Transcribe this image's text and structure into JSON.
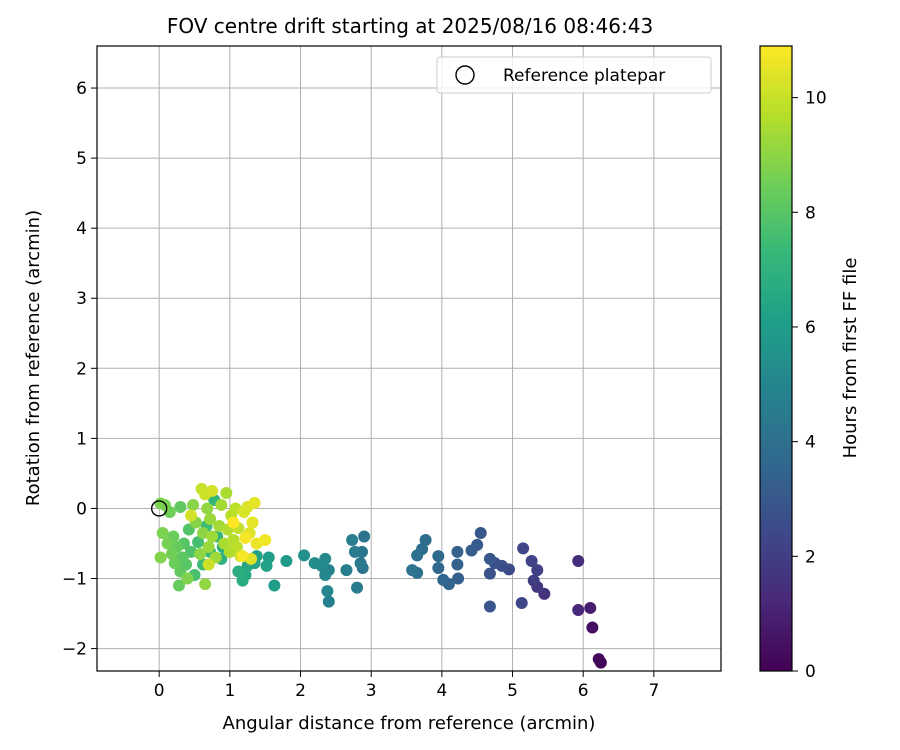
{
  "chart_data": {
    "type": "scatter",
    "title": "FOV centre drift starting at 2025/08/16 08:46:43",
    "xlabel": "Angular distance from reference (arcmin)",
    "ylabel": "Rotation from reference (arcmin)",
    "xlim": [
      -0.88,
      7.95
    ],
    "ylim": [
      -2.32,
      6.6
    ],
    "xticks": [
      "0",
      "1",
      "2",
      "3",
      "4",
      "5",
      "6",
      "7"
    ],
    "yticks": [
      "−2",
      "−1",
      "0",
      "1",
      "2",
      "3",
      "4",
      "5",
      "6"
    ],
    "grid": true,
    "legend": {
      "placement": "top-right",
      "label": "Reference platepar"
    },
    "reference_point": {
      "x": 0.0,
      "y": 0.0
    },
    "colorbar": {
      "label": "Hours from first FF file",
      "range": [
        0,
        10.9
      ],
      "ticks": [
        "0",
        "2",
        "4",
        "6",
        "8",
        "10"
      ],
      "colormap": "viridis"
    },
    "points": [
      {
        "x": 6.25,
        "y": -2.2,
        "t": 0.1
      },
      {
        "x": 6.22,
        "y": -2.15,
        "t": 0.2
      },
      {
        "x": 6.13,
        "y": -1.7,
        "t": 0.4
      },
      {
        "x": 6.1,
        "y": -1.42,
        "t": 0.9
      },
      {
        "x": 5.93,
        "y": -1.45,
        "t": 1.2
      },
      {
        "x": 5.93,
        "y": -0.75,
        "t": 1.4
      },
      {
        "x": 5.45,
        "y": -1.22,
        "t": 1.6
      },
      {
        "x": 5.35,
        "y": -1.12,
        "t": 1.8
      },
      {
        "x": 5.3,
        "y": -1.03,
        "t": 2.0
      },
      {
        "x": 5.35,
        "y": -0.88,
        "t": 2.1
      },
      {
        "x": 5.27,
        "y": -0.75,
        "t": 2.2
      },
      {
        "x": 5.15,
        "y": -0.57,
        "t": 2.3
      },
      {
        "x": 5.13,
        "y": -1.35,
        "t": 2.4
      },
      {
        "x": 4.95,
        "y": -0.87,
        "t": 2.5
      },
      {
        "x": 4.85,
        "y": -0.82,
        "t": 2.6
      },
      {
        "x": 4.75,
        "y": -0.78,
        "t": 2.7
      },
      {
        "x": 4.68,
        "y": -0.93,
        "t": 2.8
      },
      {
        "x": 4.68,
        "y": -1.4,
        "t": 2.9
      },
      {
        "x": 4.68,
        "y": -0.72,
        "t": 3.0
      },
      {
        "x": 4.55,
        "y": -0.35,
        "t": 3.0
      },
      {
        "x": 4.5,
        "y": -0.52,
        "t": 3.1
      },
      {
        "x": 4.42,
        "y": -0.6,
        "t": 3.2
      },
      {
        "x": 4.23,
        "y": -1.0,
        "t": 3.3
      },
      {
        "x": 4.22,
        "y": -0.8,
        "t": 3.4
      },
      {
        "x": 4.22,
        "y": -0.62,
        "t": 3.4
      },
      {
        "x": 4.1,
        "y": -1.08,
        "t": 3.5
      },
      {
        "x": 4.02,
        "y": -1.02,
        "t": 3.6
      },
      {
        "x": 3.95,
        "y": -0.85,
        "t": 3.6
      },
      {
        "x": 3.95,
        "y": -0.68,
        "t": 3.7
      },
      {
        "x": 3.77,
        "y": -0.45,
        "t": 3.8
      },
      {
        "x": 3.72,
        "y": -0.58,
        "t": 3.9
      },
      {
        "x": 3.65,
        "y": -0.67,
        "t": 4.0
      },
      {
        "x": 3.65,
        "y": -0.92,
        "t": 4.0
      },
      {
        "x": 3.58,
        "y": -0.88,
        "t": 4.1
      },
      {
        "x": 2.9,
        "y": -0.4,
        "t": 4.2
      },
      {
        "x": 2.88,
        "y": -0.85,
        "t": 4.3
      },
      {
        "x": 2.87,
        "y": -0.62,
        "t": 4.3
      },
      {
        "x": 2.85,
        "y": -0.78,
        "t": 4.4
      },
      {
        "x": 2.8,
        "y": -1.13,
        "t": 4.5
      },
      {
        "x": 2.77,
        "y": -0.62,
        "t": 4.5
      },
      {
        "x": 2.73,
        "y": -0.45,
        "t": 4.6
      },
      {
        "x": 2.65,
        "y": -0.88,
        "t": 4.7
      },
      {
        "x": 2.4,
        "y": -1.33,
        "t": 4.8
      },
      {
        "x": 2.4,
        "y": -0.88,
        "t": 4.9
      },
      {
        "x": 2.38,
        "y": -1.18,
        "t": 5.0
      },
      {
        "x": 2.35,
        "y": -0.95,
        "t": 5.0
      },
      {
        "x": 2.35,
        "y": -0.72,
        "t": 5.1
      },
      {
        "x": 2.3,
        "y": -0.82,
        "t": 5.2
      },
      {
        "x": 2.2,
        "y": -0.78,
        "t": 5.3
      },
      {
        "x": 2.05,
        "y": -0.67,
        "t": 5.5
      },
      {
        "x": 1.8,
        "y": -0.75,
        "t": 5.8
      },
      {
        "x": 1.63,
        "y": -1.1,
        "t": 6.0
      },
      {
        "x": 1.55,
        "y": -0.7,
        "t": 6.1
      },
      {
        "x": 1.52,
        "y": -0.82,
        "t": 6.2
      },
      {
        "x": 1.38,
        "y": -0.68,
        "t": 6.3
      },
      {
        "x": 1.35,
        "y": -0.78,
        "t": 6.4
      },
      {
        "x": 1.25,
        "y": -0.82,
        "t": 6.5
      },
      {
        "x": 1.22,
        "y": -0.95,
        "t": 6.6
      },
      {
        "x": 1.18,
        "y": -1.03,
        "t": 6.7
      },
      {
        "x": 1.12,
        "y": -0.9,
        "t": 6.8
      },
      {
        "x": 0.9,
        "y": -0.55,
        "t": 6.9
      },
      {
        "x": 0.88,
        "y": -0.72,
        "t": 7.0
      },
      {
        "x": 0.82,
        "y": -0.4,
        "t": 7.1
      },
      {
        "x": 0.78,
        "y": 0.12,
        "t": 7.2
      },
      {
        "x": 0.72,
        "y": -0.62,
        "t": 7.3
      },
      {
        "x": 0.67,
        "y": -0.25,
        "t": 7.4
      },
      {
        "x": 0.62,
        "y": -0.8,
        "t": 7.5
      },
      {
        "x": 0.55,
        "y": -0.48,
        "t": 7.6
      },
      {
        "x": 0.5,
        "y": -0.95,
        "t": 7.7
      },
      {
        "x": 0.45,
        "y": -0.62,
        "t": 7.8
      },
      {
        "x": 0.42,
        "y": -0.3,
        "t": 7.9
      },
      {
        "x": 0.38,
        "y": -0.8,
        "t": 8.0
      },
      {
        "x": 0.35,
        "y": -0.5,
        "t": 8.0
      },
      {
        "x": 0.33,
        "y": -0.7,
        "t": 8.1
      },
      {
        "x": 0.3,
        "y": 0.02,
        "t": 8.2
      },
      {
        "x": 0.3,
        "y": -0.9,
        "t": 8.2
      },
      {
        "x": 0.28,
        "y": -1.1,
        "t": 8.3
      },
      {
        "x": 0.25,
        "y": -0.55,
        "t": 8.3
      },
      {
        "x": 0.22,
        "y": -0.78,
        "t": 8.4
      },
      {
        "x": 0.2,
        "y": -0.4,
        "t": 8.4
      },
      {
        "x": 0.18,
        "y": -0.65,
        "t": 8.5
      },
      {
        "x": 0.15,
        "y": -0.05,
        "t": 8.5
      },
      {
        "x": 0.12,
        "y": -0.5,
        "t": 8.6
      },
      {
        "x": 0.08,
        "y": 0.05,
        "t": 8.6
      },
      {
        "x": 0.05,
        "y": -0.35,
        "t": 8.7
      },
      {
        "x": 0.02,
        "y": 0.07,
        "t": 8.7
      },
      {
        "x": 0.02,
        "y": -0.7,
        "t": 8.8
      },
      {
        "x": 0.4,
        "y": -1.0,
        "t": 8.8
      },
      {
        "x": 0.48,
        "y": 0.05,
        "t": 8.9
      },
      {
        "x": 0.52,
        "y": -0.2,
        "t": 8.9
      },
      {
        "x": 0.58,
        "y": -0.65,
        "t": 9.0
      },
      {
        "x": 0.62,
        "y": -0.35,
        "t": 9.0
      },
      {
        "x": 0.65,
        "y": -1.08,
        "t": 9.1
      },
      {
        "x": 0.68,
        "y": 0.0,
        "t": 9.1
      },
      {
        "x": 0.7,
        "y": -0.55,
        "t": 9.2
      },
      {
        "x": 0.72,
        "y": -0.15,
        "t": 9.2
      },
      {
        "x": 0.75,
        "y": -0.4,
        "t": 9.3
      },
      {
        "x": 0.8,
        "y": -0.7,
        "t": 9.3
      },
      {
        "x": 0.85,
        "y": -0.25,
        "t": 9.4
      },
      {
        "x": 0.88,
        "y": 0.05,
        "t": 9.4
      },
      {
        "x": 0.92,
        "y": -0.5,
        "t": 9.5
      },
      {
        "x": 0.95,
        "y": 0.22,
        "t": 9.5
      },
      {
        "x": 0.97,
        "y": -0.3,
        "t": 9.6
      },
      {
        "x": 1.0,
        "y": -0.62,
        "t": 9.6
      },
      {
        "x": 1.02,
        "y": -0.1,
        "t": 9.7
      },
      {
        "x": 1.05,
        "y": -0.45,
        "t": 9.7
      },
      {
        "x": 1.08,
        "y": 0.0,
        "t": 9.8
      },
      {
        "x": 1.1,
        "y": -0.55,
        "t": 9.8
      },
      {
        "x": 1.12,
        "y": -0.28,
        "t": 9.9
      },
      {
        "x": 1.15,
        "y": -0.68,
        "t": 10.0
      },
      {
        "x": 0.6,
        "y": 0.28,
        "t": 10.0
      },
      {
        "x": 0.65,
        "y": 0.2,
        "t": 10.1
      },
      {
        "x": 0.7,
        "y": -0.8,
        "t": 10.1
      },
      {
        "x": 0.75,
        "y": 0.25,
        "t": 10.2
      },
      {
        "x": 0.45,
        "y": -0.1,
        "t": 10.2
      },
      {
        "x": 1.2,
        "y": -0.05,
        "t": 10.3
      },
      {
        "x": 1.25,
        "y": 0.02,
        "t": 10.3
      },
      {
        "x": 1.28,
        "y": -0.35,
        "t": 10.4
      },
      {
        "x": 1.3,
        "y": -0.72,
        "t": 10.4
      },
      {
        "x": 1.32,
        "y": -0.2,
        "t": 10.5
      },
      {
        "x": 1.35,
        "y": 0.08,
        "t": 10.5
      },
      {
        "x": 1.38,
        "y": -0.5,
        "t": 10.6
      },
      {
        "x": 1.5,
        "y": -0.45,
        "t": 10.7
      },
      {
        "x": 1.22,
        "y": -0.42,
        "t": 10.8
      },
      {
        "x": 1.18,
        "y": -0.68,
        "t": 10.8
      },
      {
        "x": 1.05,
        "y": -0.2,
        "t": 10.9
      }
    ]
  }
}
